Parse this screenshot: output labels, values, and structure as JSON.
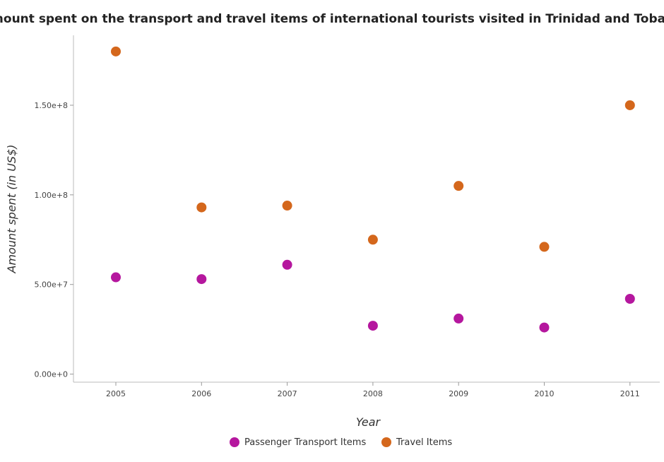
{
  "chart_data": {
    "type": "scatter",
    "title": "Amount spent on the transport and travel items of international tourists visited in Trinidad and Tobago",
    "xlabel": "Year",
    "ylabel": "Amount spent (in US$)",
    "categories": [
      "2005",
      "2006",
      "2007",
      "2008",
      "2009",
      "2010",
      "2011"
    ],
    "y_ticks": [
      0,
      50000000,
      100000000,
      150000000
    ],
    "y_tick_labels": [
      "0.00e+0",
      "5.00e+7",
      "1.00e+8",
      "1.50e+8"
    ],
    "ylim": [
      -4500000,
      189000000
    ],
    "grid": false,
    "legend_position": "bottom-center",
    "series": [
      {
        "name": "Passenger Transport Items",
        "color": "#b5179e",
        "values": [
          54000000,
          53000000,
          61000000,
          27000000,
          31000000,
          26000000,
          42000000
        ]
      },
      {
        "name": "Travel Items",
        "color": "#d4671c",
        "values": [
          180000000,
          93000000,
          94000000,
          75000000,
          105000000,
          71000000,
          150000000
        ]
      }
    ]
  }
}
